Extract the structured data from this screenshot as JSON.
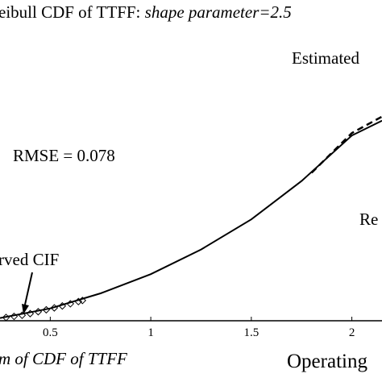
{
  "chart_data": {
    "type": "line",
    "title": "eibull CDF of TTFF: ",
    "title_italic": "shape parameter=2.5",
    "annotations": [
      "Estimated",
      "RMSE = 0.078",
      "Re",
      "rved CIF"
    ],
    "x_label_italic": "m of CDF of TTFF",
    "x_label": "Operating",
    "xlim": [
      0.25,
      2.15
    ],
    "ylim": [
      0,
      1
    ],
    "xticks": [
      0.5,
      1,
      1.5,
      2
    ],
    "series": [
      {
        "name": "Estimated",
        "style": "solid",
        "color": "#000000",
        "x": [
          0.25,
          0.5,
          0.75,
          1,
          1.25,
          1.5,
          1.75,
          2,
          2.15
        ],
        "values": [
          0.01,
          0.045,
          0.1,
          0.17,
          0.26,
          0.37,
          0.51,
          0.676,
          0.73
        ]
      },
      {
        "name": "Re",
        "style": "dashed",
        "color": "#000000",
        "x": [
          1.8,
          2,
          2.15
        ],
        "values": [
          0.54,
          0.685,
          0.745
        ]
      },
      {
        "name": "rved CIF",
        "style": "markers",
        "color": "#000000",
        "x": [
          0.28,
          0.32,
          0.36,
          0.4,
          0.44,
          0.48,
          0.52,
          0.56,
          0.6,
          0.64,
          0.66
        ],
        "values": [
          0.012,
          0.016,
          0.02,
          0.026,
          0.033,
          0.04,
          0.047,
          0.054,
          0.062,
          0.07,
          0.074
        ]
      }
    ]
  }
}
